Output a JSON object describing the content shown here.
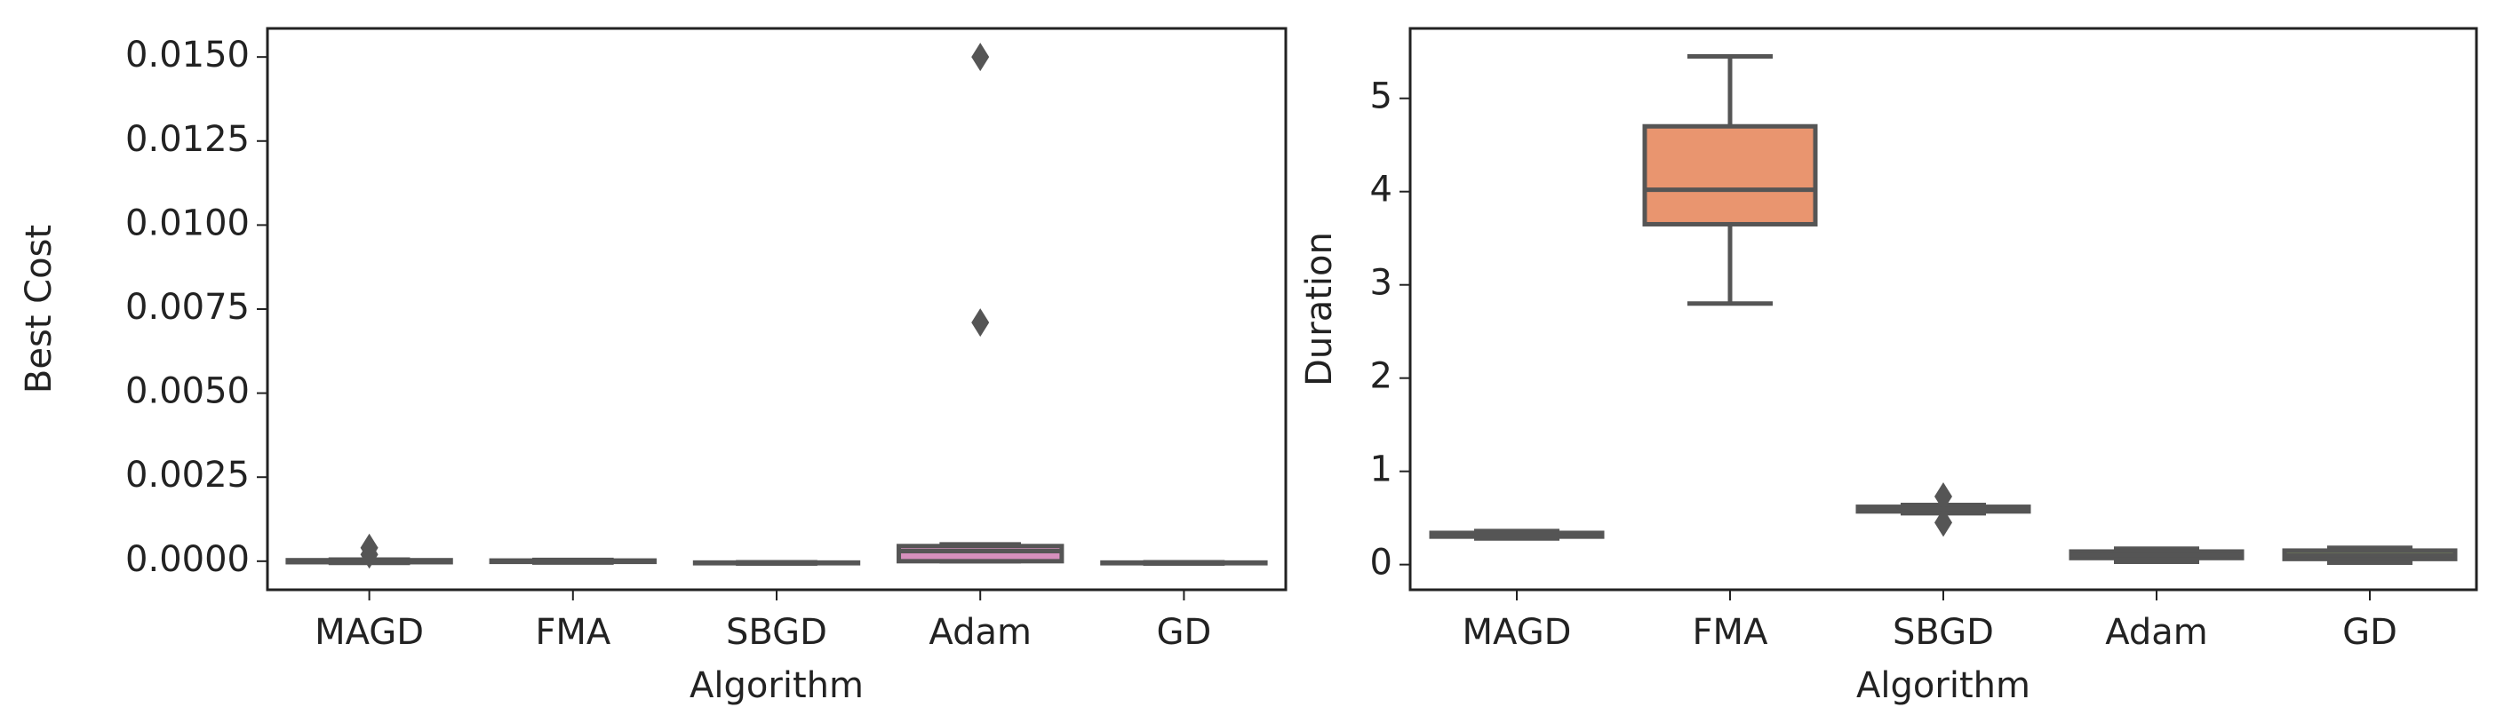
{
  "chart_data": [
    {
      "type": "box",
      "xlabel": "Algorithm",
      "ylabel": "Best Cost",
      "categories": [
        "MAGD",
        "FMA",
        "SBGD",
        "Adam",
        "GD"
      ],
      "colors": [
        "#72b69f",
        "#e9956f",
        "#939fc0",
        "#d690bd",
        "#a2c666"
      ],
      "boxes": [
        {
          "min": -5e-05,
          "q1": -3e-05,
          "median": 0,
          "q3": 3e-05,
          "max": 5e-05,
          "fliers": [
            0.0004,
            0.0002
          ]
        },
        {
          "min": -4e-05,
          "q1": -2e-05,
          "median": 0,
          "q3": 2e-05,
          "max": 4e-05,
          "fliers": []
        },
        {
          "min": -7e-05,
          "q1": -6e-05,
          "median": -5e-05,
          "q3": -4e-05,
          "max": -3e-05,
          "fliers": []
        },
        {
          "min": 0,
          "q1": 0,
          "median": 0.0003,
          "q3": 0.00045,
          "max": 0.0005,
          "fliers": [
            0.0071,
            0.015
          ]
        },
        {
          "min": -7e-05,
          "q1": -6e-05,
          "median": -5e-05,
          "q3": -4e-05,
          "max": -3e-05,
          "fliers": []
        }
      ],
      "ylim": [
        -0.00085,
        0.01585
      ],
      "yticks": [
        {
          "value": 0,
          "label": "0.0000"
        },
        {
          "value": 0.0025,
          "label": "0.0025"
        },
        {
          "value": 0.005,
          "label": "0.0050"
        },
        {
          "value": 0.0075,
          "label": "0.0075"
        },
        {
          "value": 0.01,
          "label": "0.0100"
        },
        {
          "value": 0.0125,
          "label": "0.0125"
        },
        {
          "value": 0.015,
          "label": "0.0150"
        }
      ]
    },
    {
      "type": "box",
      "xlabel": "Algorithm",
      "ylabel": "Duration",
      "categories": [
        "MAGD",
        "FMA",
        "SBGD",
        "Adam",
        "GD"
      ],
      "colors": [
        "#72b69f",
        "#e9956f",
        "#939fc0",
        "#d690bd",
        "#a2c666"
      ],
      "boxes": [
        {
          "min": 0.28,
          "q1": 0.3,
          "median": 0.32,
          "q3": 0.34,
          "max": 0.36,
          "fliers": []
        },
        {
          "min": 2.8,
          "q1": 3.65,
          "median": 4.02,
          "q3": 4.7,
          "max": 5.45,
          "fliers": []
        },
        {
          "min": 0.55,
          "q1": 0.57,
          "median": 0.6,
          "q3": 0.62,
          "max": 0.64,
          "fliers": [
            0.73,
            0.45
          ]
        },
        {
          "min": 0.03,
          "q1": 0.07,
          "median": 0.1,
          "q3": 0.14,
          "max": 0.17,
          "fliers": []
        },
        {
          "min": 0.02,
          "q1": 0.06,
          "median": 0.1,
          "q3": 0.15,
          "max": 0.18,
          "fliers": []
        }
      ],
      "ylim": [
        -0.27,
        5.75
      ],
      "yticks": [
        0,
        1,
        2,
        3,
        4,
        5
      ]
    }
  ]
}
